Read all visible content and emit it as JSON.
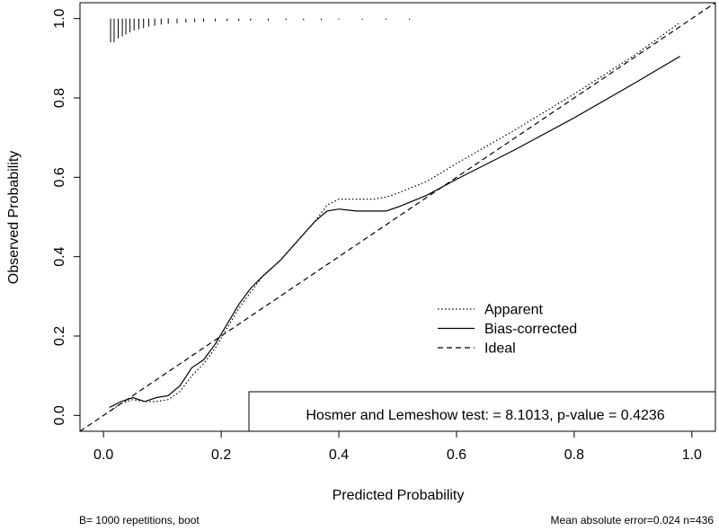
{
  "chart_data": {
    "type": "line",
    "xlabel": "Predicted Probability",
    "ylabel": "Observed Probability",
    "xlim": [
      -0.04,
      1.04
    ],
    "ylim": [
      -0.04,
      1.04
    ],
    "x_ticks": [
      0.0,
      0.2,
      0.4,
      0.6,
      0.8,
      1.0
    ],
    "x_tick_labels": [
      "0.0",
      "0.2",
      "0.4",
      "0.6",
      "0.8",
      "1.0"
    ],
    "y_ticks": [
      0.0,
      0.2,
      0.4,
      0.6,
      0.8,
      1.0
    ],
    "y_tick_labels": [
      "0.0",
      "0.2",
      "0.4",
      "0.6",
      "0.8",
      "1.0"
    ],
    "series": [
      {
        "name": "Apparent",
        "style": "dotted",
        "x": [
          0.01,
          0.03,
          0.05,
          0.07,
          0.09,
          0.11,
          0.13,
          0.15,
          0.17,
          0.19,
          0.21,
          0.23,
          0.25,
          0.27,
          0.3,
          0.33,
          0.36,
          0.38,
          0.4,
          0.43,
          0.46,
          0.48,
          0.5,
          0.55,
          0.6,
          0.7,
          0.8,
          0.9,
          0.98
        ],
        "y": [
          0.01,
          0.03,
          0.04,
          0.035,
          0.035,
          0.04,
          0.06,
          0.1,
          0.13,
          0.17,
          0.22,
          0.27,
          0.31,
          0.35,
          0.39,
          0.44,
          0.49,
          0.53,
          0.545,
          0.545,
          0.545,
          0.55,
          0.56,
          0.59,
          0.635,
          0.72,
          0.81,
          0.905,
          0.99
        ]
      },
      {
        "name": "Bias-corrected",
        "style": "solid",
        "x": [
          0.01,
          0.03,
          0.05,
          0.07,
          0.09,
          0.11,
          0.13,
          0.15,
          0.17,
          0.19,
          0.21,
          0.23,
          0.25,
          0.27,
          0.3,
          0.33,
          0.36,
          0.38,
          0.4,
          0.43,
          0.46,
          0.48,
          0.5,
          0.55,
          0.6,
          0.7,
          0.8,
          0.9,
          0.98
        ],
        "y": [
          0.02,
          0.035,
          0.045,
          0.035,
          0.045,
          0.05,
          0.075,
          0.12,
          0.14,
          0.18,
          0.23,
          0.28,
          0.32,
          0.35,
          0.39,
          0.44,
          0.49,
          0.515,
          0.52,
          0.515,
          0.515,
          0.515,
          0.525,
          0.555,
          0.595,
          0.67,
          0.75,
          0.835,
          0.905
        ]
      },
      {
        "name": "Ideal",
        "style": "dashed",
        "x": [
          -0.04,
          1.04
        ],
        "y": [
          -0.04,
          1.04
        ]
      }
    ],
    "rug_x": [
      0.012,
      0.018,
      0.025,
      0.032,
      0.038,
      0.045,
      0.052,
      0.06,
      0.068,
      0.077,
      0.087,
      0.098,
      0.11,
      0.125,
      0.14,
      0.155,
      0.17,
      0.19,
      0.21,
      0.23,
      0.25,
      0.28,
      0.31,
      0.34,
      0.37,
      0.4,
      0.44,
      0.48,
      0.52
    ],
    "rug_len": [
      0.06,
      0.06,
      0.05,
      0.045,
      0.04,
      0.035,
      0.03,
      0.027,
      0.024,
      0.02,
      0.018,
      0.015,
      0.013,
      0.012,
      0.01,
      0.009,
      0.008,
      0.007,
      0.006,
      0.006,
      0.005,
      0.005,
      0.004,
      0.004,
      0.004,
      0.003,
      0.003,
      0.003,
      0.003
    ],
    "legend": {
      "position": "center-right",
      "entries": [
        "Apparent",
        "Bias-corrected",
        "Ideal"
      ]
    },
    "annotation": "Hosmer and Lemeshow test: = 8.1013, p-value = 0.4236"
  },
  "footer": {
    "left": "B= 1000 repetitions, boot",
    "right": "Mean absolute error=0.024 n=436"
  }
}
